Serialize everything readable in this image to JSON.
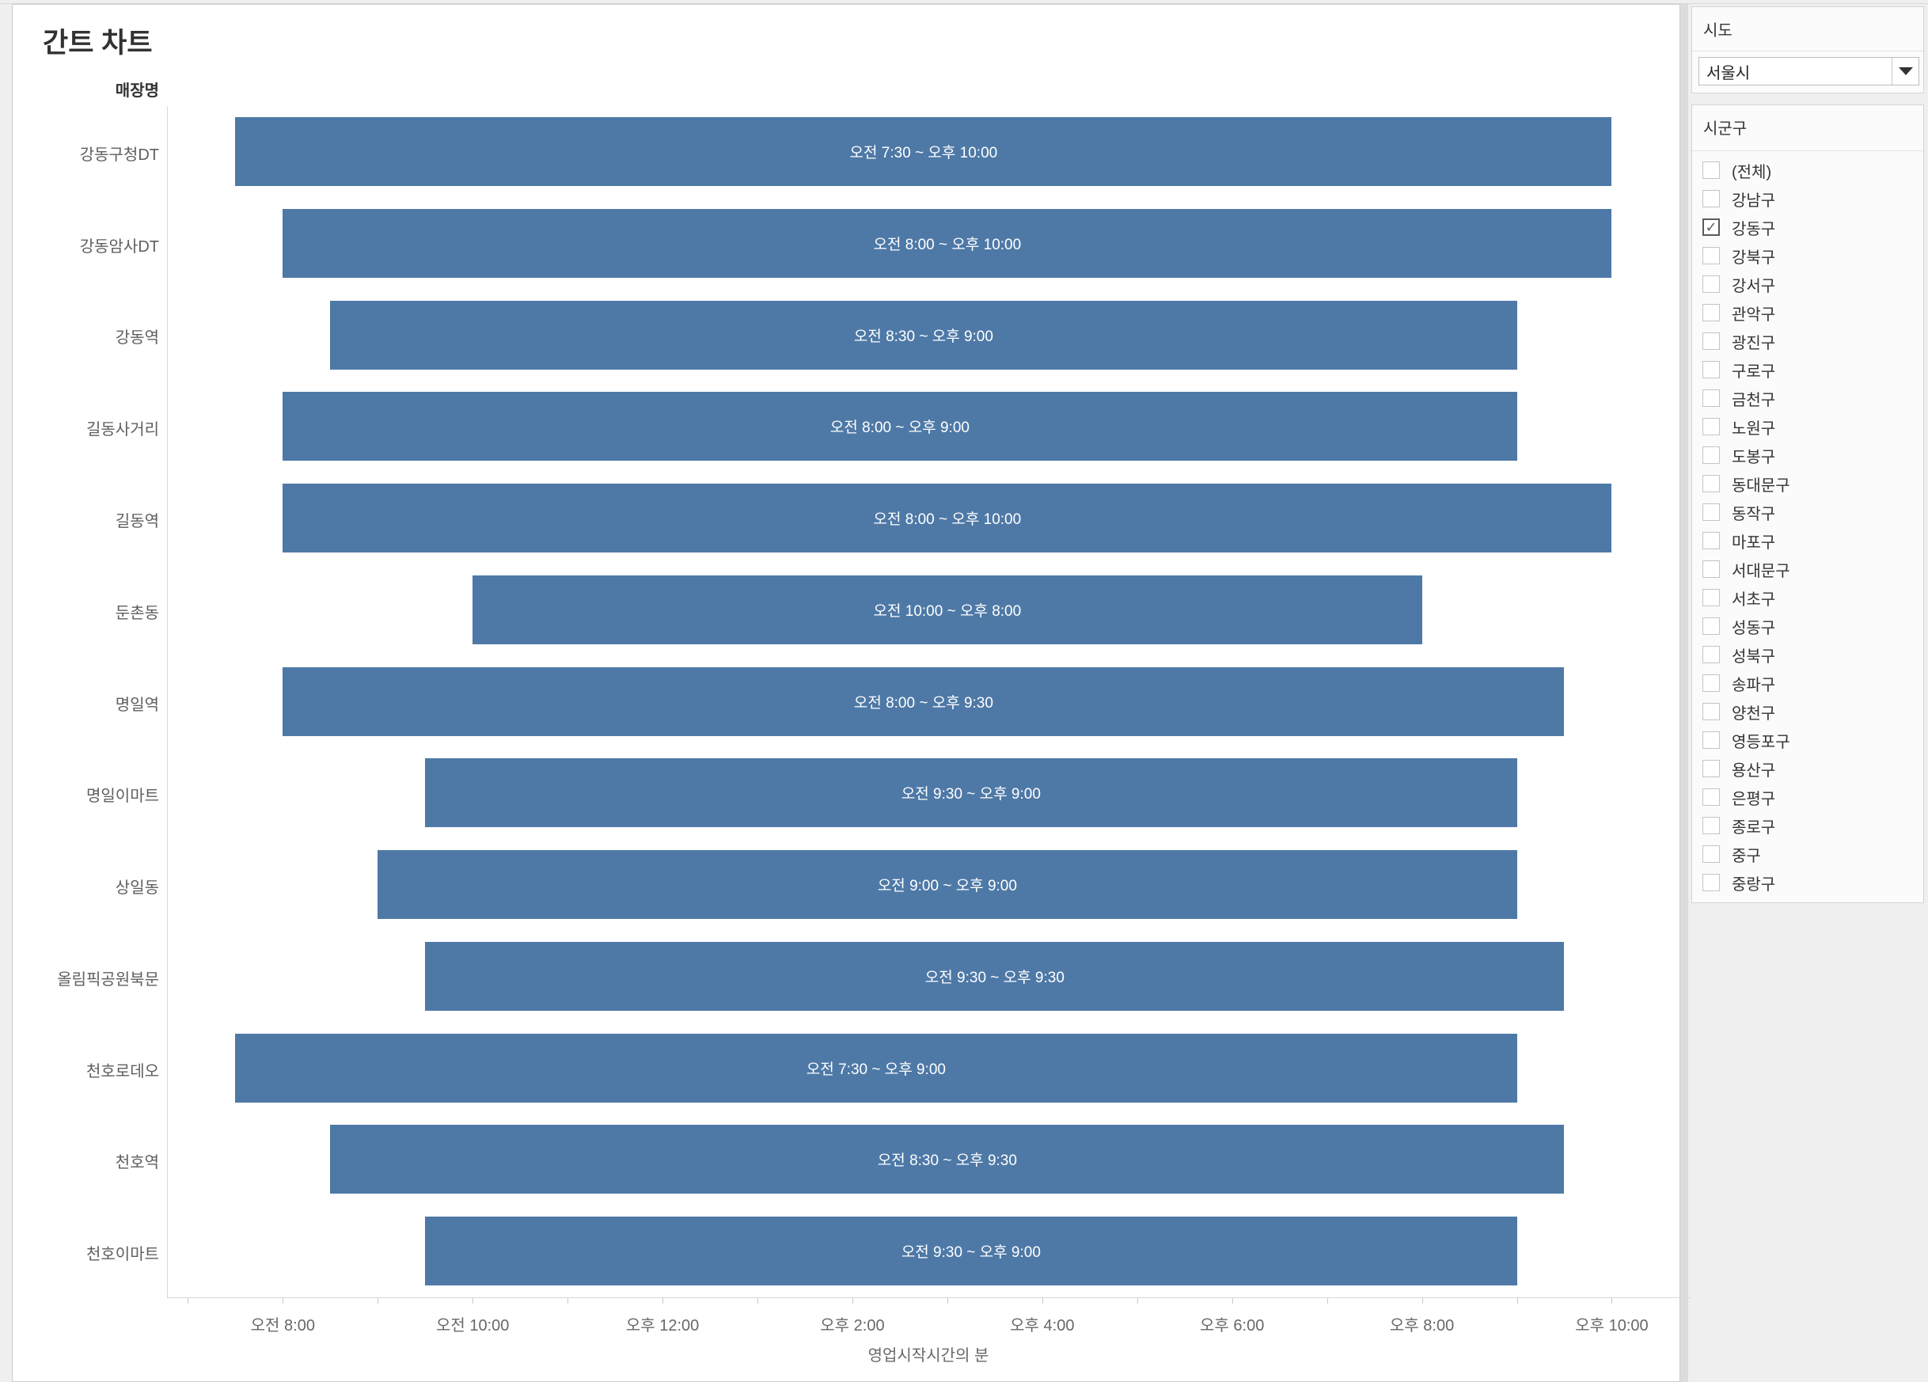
{
  "title": "간트 차트",
  "row_header": "매장명",
  "chart_data": {
    "type": "gantt",
    "unit": "hours_24h",
    "bar_color": "#4e79a7",
    "x_axis": {
      "title": "영업시작시간의 분",
      "min_hour": 6.78,
      "max_hour": 22.83,
      "major_ticks": [
        {
          "hour": 8,
          "label": "오전 8:00"
        },
        {
          "hour": 10,
          "label": "오전 10:00"
        },
        {
          "hour": 12,
          "label": "오후 12:00"
        },
        {
          "hour": 14,
          "label": "오후 2:00"
        },
        {
          "hour": 16,
          "label": "오후 4:00"
        },
        {
          "hour": 18,
          "label": "오후 6:00"
        },
        {
          "hour": 20,
          "label": "오후 8:00"
        },
        {
          "hour": 22,
          "label": "오후 10:00"
        }
      ],
      "minor_tick_first_hour": 7,
      "minor_tick_last_hour": 22
    },
    "rows": [
      {
        "store": "강동구청DT",
        "bar_label": "오전 7:30 ~ 오후 10:00",
        "start": 7.5,
        "end": 22
      },
      {
        "store": "강동암사DT",
        "bar_label": "오전 8:00 ~ 오후 10:00",
        "start": 8,
        "end": 22
      },
      {
        "store": "강동역",
        "bar_label": "오전 8:30 ~ 오후 9:00",
        "start": 8.5,
        "end": 21
      },
      {
        "store": "길동사거리",
        "bar_label": "오전 8:00 ~ 오후 9:00",
        "start": 8,
        "end": 21
      },
      {
        "store": "길동역",
        "bar_label": "오전 8:00 ~ 오후 10:00",
        "start": 8,
        "end": 22
      },
      {
        "store": "둔촌동",
        "bar_label": "오전 10:00 ~ 오후 8:00",
        "start": 10,
        "end": 20
      },
      {
        "store": "명일역",
        "bar_label": "오전 8:00 ~ 오후 9:30",
        "start": 8,
        "end": 21.5
      },
      {
        "store": "명일이마트",
        "bar_label": "오전 9:30 ~ 오후 9:00",
        "start": 9.5,
        "end": 21
      },
      {
        "store": "상일동",
        "bar_label": "오전 9:00 ~ 오후 9:00",
        "start": 9,
        "end": 21
      },
      {
        "store": "올림픽공원북문",
        "bar_label": "오전 9:30 ~ 오후 9:30",
        "start": 9.5,
        "end": 21.5
      },
      {
        "store": "천호로데오",
        "bar_label": "오전 7:30 ~ 오후 9:00",
        "start": 7.5,
        "end": 21
      },
      {
        "store": "천호역",
        "bar_label": "오전 8:30 ~ 오후 9:30",
        "start": 8.5,
        "end": 21.5
      },
      {
        "store": "천호이마트",
        "bar_label": "오전 9:30 ~ 오후 9:00",
        "start": 9.5,
        "end": 21
      }
    ]
  },
  "filters": {
    "sido": {
      "label": "시도",
      "selected_value": "서울시"
    },
    "sigungu": {
      "label": "시군구",
      "options": [
        {
          "label": "(전체)",
          "checked": false
        },
        {
          "label": "강남구",
          "checked": false
        },
        {
          "label": "강동구",
          "checked": true
        },
        {
          "label": "강북구",
          "checked": false
        },
        {
          "label": "강서구",
          "checked": false
        },
        {
          "label": "관악구",
          "checked": false
        },
        {
          "label": "광진구",
          "checked": false
        },
        {
          "label": "구로구",
          "checked": false
        },
        {
          "label": "금천구",
          "checked": false
        },
        {
          "label": "노원구",
          "checked": false
        },
        {
          "label": "도봉구",
          "checked": false
        },
        {
          "label": "동대문구",
          "checked": false
        },
        {
          "label": "동작구",
          "checked": false
        },
        {
          "label": "마포구",
          "checked": false
        },
        {
          "label": "서대문구",
          "checked": false
        },
        {
          "label": "서초구",
          "checked": false
        },
        {
          "label": "성동구",
          "checked": false
        },
        {
          "label": "성북구",
          "checked": false
        },
        {
          "label": "송파구",
          "checked": false
        },
        {
          "label": "양천구",
          "checked": false
        },
        {
          "label": "영등포구",
          "checked": false
        },
        {
          "label": "용산구",
          "checked": false
        },
        {
          "label": "은평구",
          "checked": false
        },
        {
          "label": "종로구",
          "checked": false
        },
        {
          "label": "중구",
          "checked": false
        },
        {
          "label": "중랑구",
          "checked": false
        }
      ]
    }
  }
}
